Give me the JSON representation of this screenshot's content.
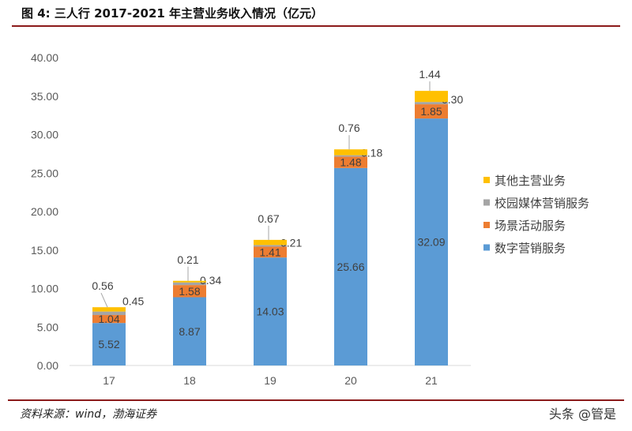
{
  "title": "图 4:  三人行 2017-2021 年主营业务收入情况（亿元）",
  "source": "资料来源：wind，渤海证券",
  "watermark": "头条 @管是",
  "chart_data": {
    "type": "bar",
    "stacked": true,
    "categories": [
      "17",
      "18",
      "19",
      "20",
      "21"
    ],
    "ylim": [
      0,
      40
    ],
    "yticks": [
      "0.00",
      "5.00",
      "10.00",
      "15.00",
      "20.00",
      "25.00",
      "30.00",
      "35.00",
      "40.00"
    ],
    "grid": false,
    "legend_position": "right",
    "series": [
      {
        "name": "数字营销服务",
        "color": "#5b9bd5",
        "values": [
          5.52,
          8.87,
          14.03,
          25.66,
          32.09
        ]
      },
      {
        "name": "场景活动服务",
        "color": "#ed7d31",
        "values": [
          1.04,
          1.58,
          1.41,
          1.48,
          1.85
        ]
      },
      {
        "name": "校园媒体营销服务",
        "color": "#a5a5a5",
        "values": [
          0.45,
          0.34,
          0.21,
          0.18,
          0.3
        ]
      },
      {
        "name": "其他主营业务",
        "color": "#ffc000",
        "values": [
          0.56,
          0.21,
          0.67,
          0.76,
          1.44
        ]
      }
    ]
  }
}
